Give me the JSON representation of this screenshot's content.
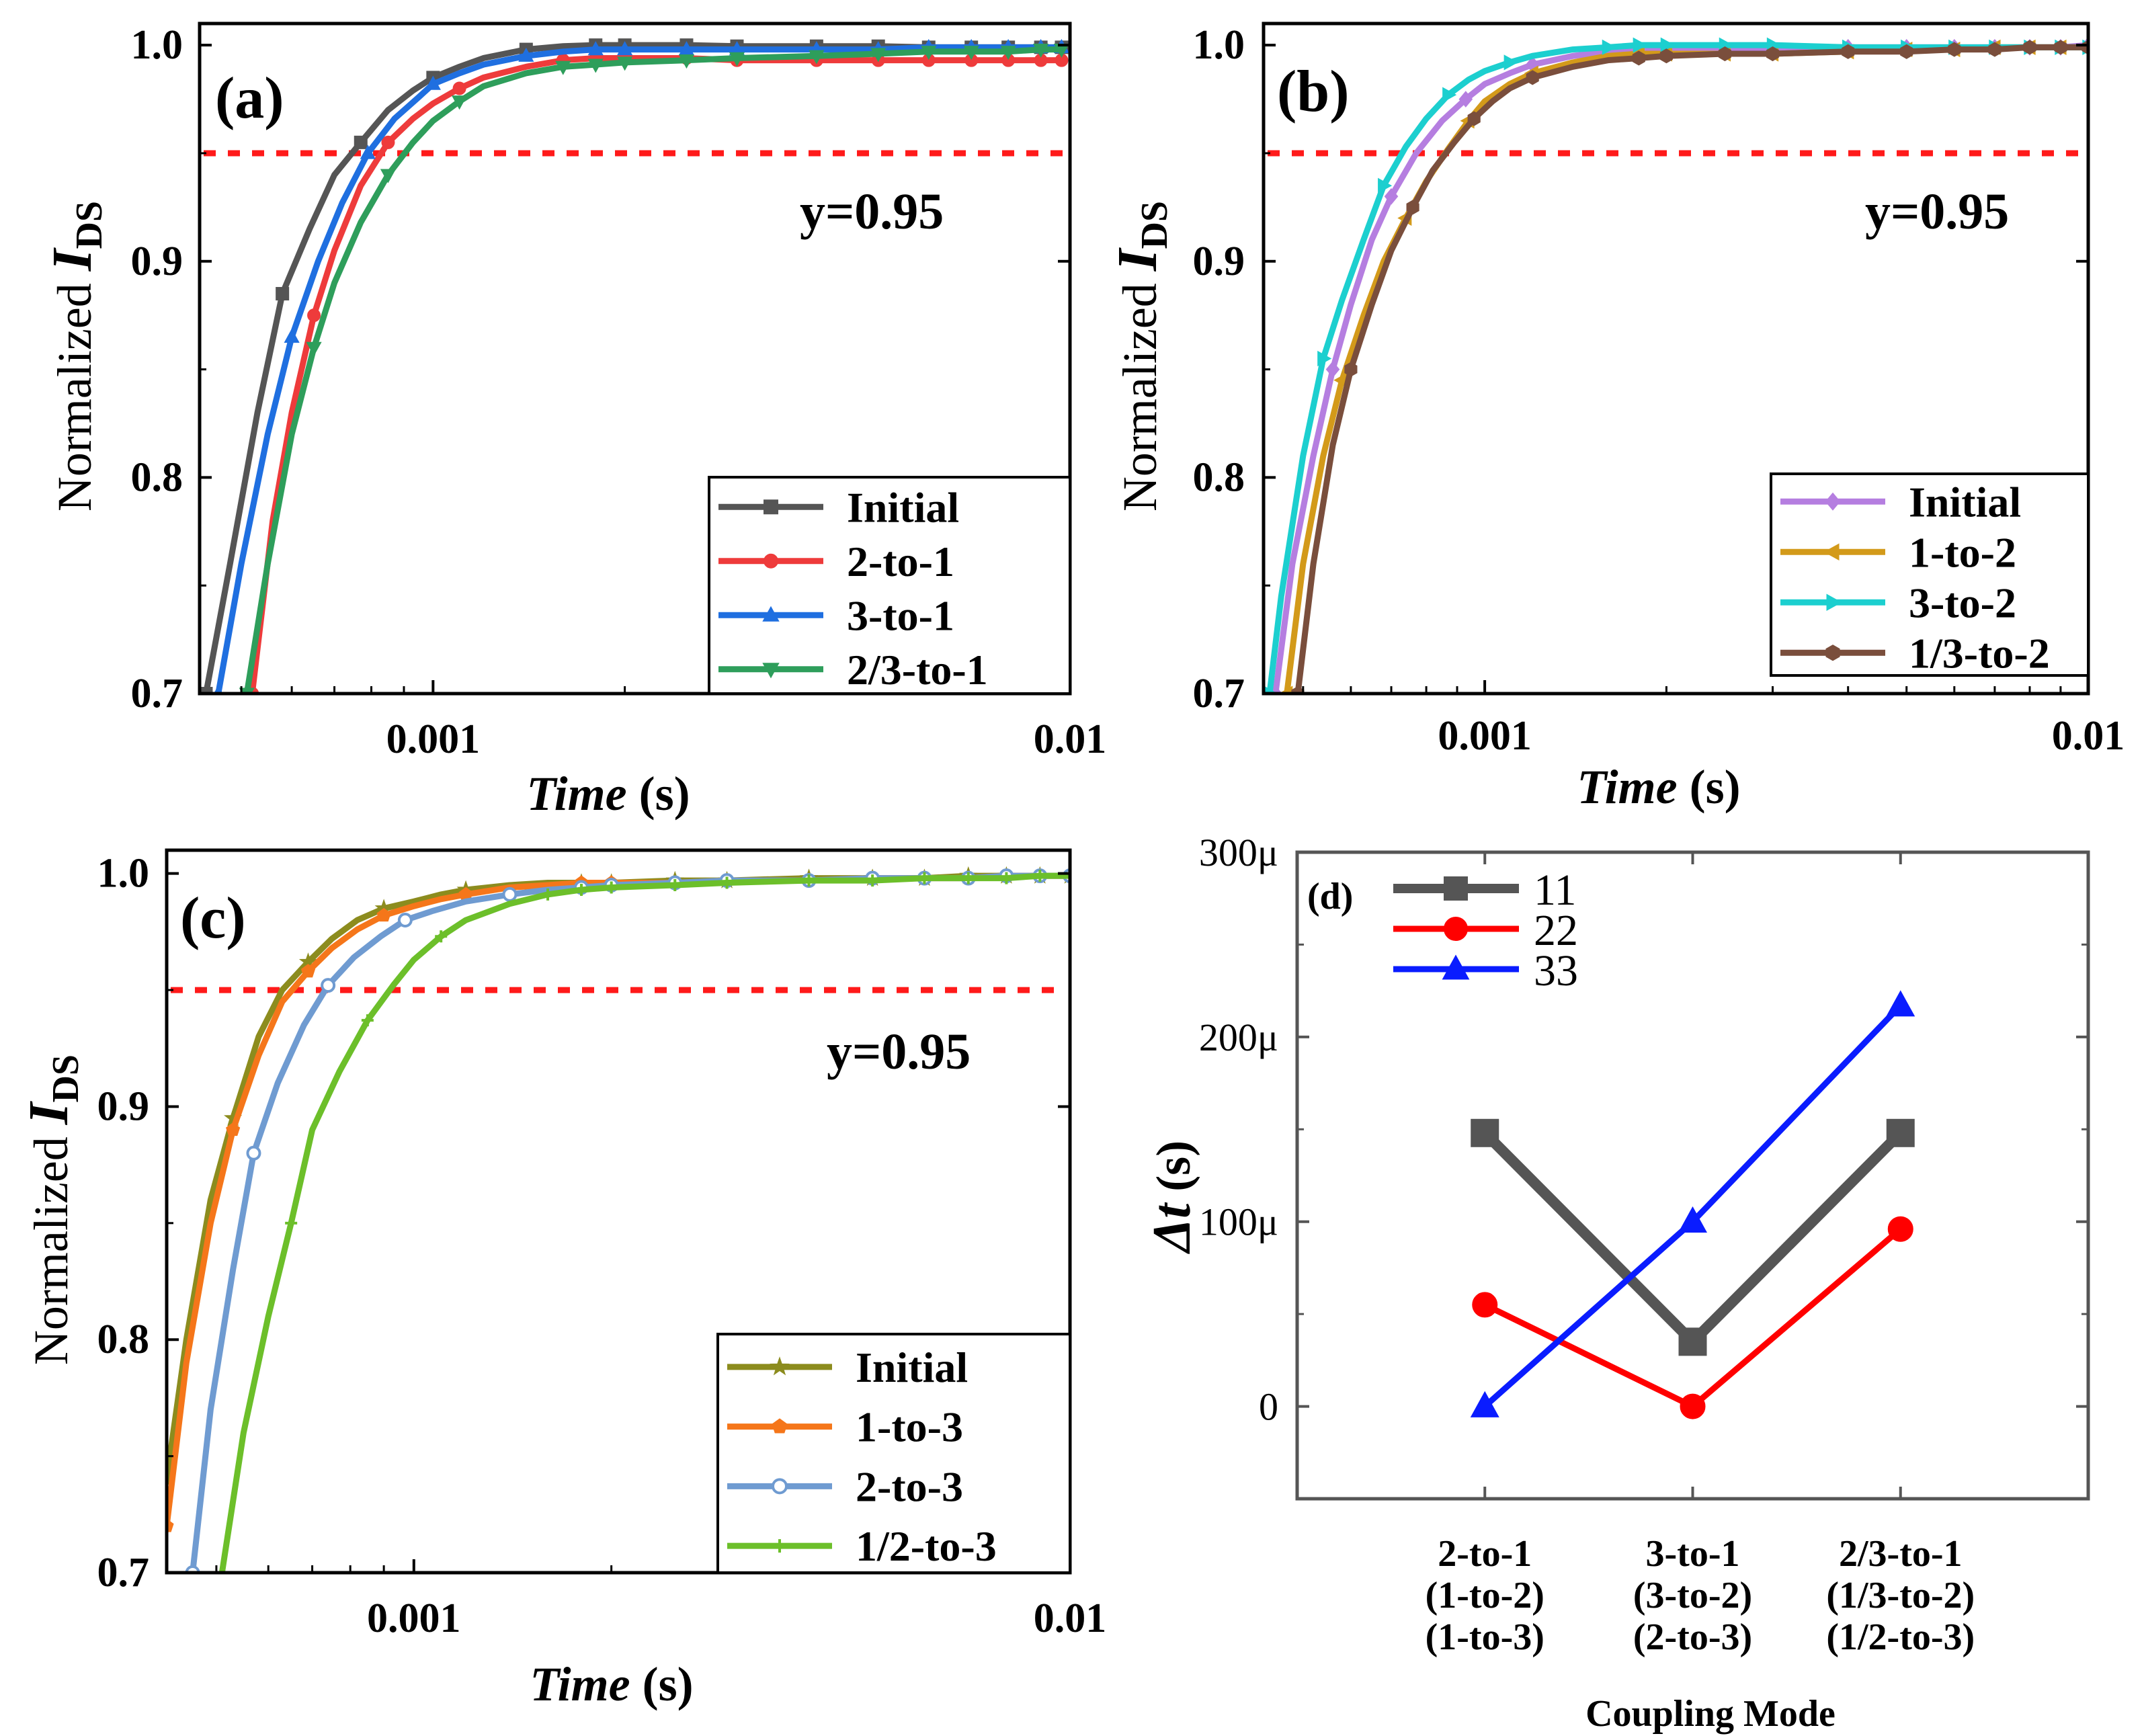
{
  "chart_data": [
    {
      "id": "a",
      "type": "line",
      "panel_label": "(a)",
      "xlabel_italic": "Time",
      "xlabel_unit": " (s)",
      "ylabel_prefix": "Normalized ",
      "ylabel_var": "I",
      "ylabel_sub": "DS",
      "xscale": "log",
      "xlim": [
        0.00043,
        0.01
      ],
      "ylim": [
        0.7,
        1.01
      ],
      "xticks": [
        0.001,
        0.01
      ],
      "xtick_labels": [
        "0.001",
        "0.01"
      ],
      "yticks": [
        0.7,
        0.8,
        0.9,
        1.0
      ],
      "ytick_labels": [
        "0.7",
        "0.8",
        "0.9",
        "1.0"
      ],
      "reference_line": {
        "y": 0.95,
        "label": "y=0.95",
        "color": "#ff1a1a"
      },
      "legend_position": "bottom-right",
      "series": [
        {
          "name": "Initial",
          "color": "#555555",
          "marker": "square",
          "x": [
            0.00044,
            0.00048,
            0.00053,
            0.00058,
            0.00064,
            0.0007,
            0.00077,
            0.00085,
            0.00093,
            0.001,
            0.0011,
            0.0012,
            0.0014,
            0.0016,
            0.0018,
            0.002,
            0.0025,
            0.003,
            0.004,
            0.005,
            0.006,
            0.007,
            0.008,
            0.009,
            0.0097
          ],
          "y": [
            0.7,
            0.76,
            0.83,
            0.885,
            0.915,
            0.94,
            0.955,
            0.97,
            0.979,
            0.985,
            0.99,
            0.994,
            0.998,
            0.9995,
            1.0,
            1.0,
            1.0,
            0.9995,
            0.9995,
            0.9995,
            0.999,
            0.999,
            0.999,
            0.999,
            0.999
          ]
        },
        {
          "name": "2-to-1",
          "color": "#ee3b3b",
          "marker": "circle",
          "x": [
            0.00052,
            0.00056,
            0.0006,
            0.00065,
            0.0007,
            0.00077,
            0.00085,
            0.00093,
            0.001,
            0.0011,
            0.0012,
            0.0014,
            0.0016,
            0.0018,
            0.002,
            0.0025,
            0.003,
            0.004,
            0.005,
            0.006,
            0.007,
            0.008,
            0.009,
            0.0097
          ],
          "y": [
            0.7,
            0.78,
            0.83,
            0.875,
            0.905,
            0.935,
            0.955,
            0.966,
            0.973,
            0.98,
            0.985,
            0.99,
            0.993,
            0.994,
            0.994,
            0.994,
            0.993,
            0.993,
            0.993,
            0.993,
            0.993,
            0.993,
            0.993,
            0.993
          ]
        },
        {
          "name": "3-to-1",
          "color": "#1f6fe0",
          "marker": "triangle-up",
          "x": [
            0.00046,
            0.0005,
            0.00055,
            0.0006,
            0.00066,
            0.00072,
            0.00079,
            0.00087,
            0.00095,
            0.001,
            0.0011,
            0.0012,
            0.0014,
            0.0016,
            0.0018,
            0.002,
            0.0025,
            0.003,
            0.004,
            0.005,
            0.006,
            0.007,
            0.008,
            0.009,
            0.0097
          ],
          "y": [
            0.7,
            0.76,
            0.82,
            0.865,
            0.9,
            0.927,
            0.95,
            0.966,
            0.976,
            0.982,
            0.987,
            0.991,
            0.995,
            0.997,
            0.998,
            0.998,
            0.998,
            0.998,
            0.998,
            0.998,
            0.999,
            0.999,
            0.999,
            0.999,
            0.999
          ]
        },
        {
          "name": "2/3-to-1",
          "color": "#2e9e5b",
          "marker": "triangle-down",
          "x": [
            0.00051,
            0.00055,
            0.0006,
            0.00065,
            0.0007,
            0.00077,
            0.00085,
            0.00093,
            0.001,
            0.0011,
            0.0012,
            0.0014,
            0.0016,
            0.0018,
            0.002,
            0.0025,
            0.003,
            0.004,
            0.005,
            0.006,
            0.007,
            0.008,
            0.009,
            0.0097
          ],
          "y": [
            0.7,
            0.76,
            0.82,
            0.86,
            0.89,
            0.918,
            0.94,
            0.955,
            0.965,
            0.974,
            0.981,
            0.987,
            0.99,
            0.991,
            0.992,
            0.993,
            0.994,
            0.995,
            0.996,
            0.997,
            0.997,
            0.997,
            0.998,
            0.998
          ]
        }
      ]
    },
    {
      "id": "b",
      "type": "line",
      "panel_label": "(b)",
      "xlabel_italic": "Time",
      "xlabel_unit": " (s)",
      "ylabel_prefix": "Normalized ",
      "ylabel_var": "I",
      "ylabel_sub": "DS",
      "xscale": "log",
      "xlim": [
        0.00043,
        0.01
      ],
      "ylim": [
        0.7,
        1.01
      ],
      "xticks": [
        0.001,
        0.01
      ],
      "xtick_labels": [
        "0.001",
        "0.01"
      ],
      "yticks": [
        0.7,
        0.8,
        0.9,
        1.0
      ],
      "ytick_labels": [
        "0.7",
        "0.8",
        "0.9",
        "1.0"
      ],
      "reference_line": {
        "y": 0.95,
        "label": "y=0.95",
        "color": "#ff1a1a"
      },
      "legend_position": "bottom-right",
      "series": [
        {
          "name": "Initial",
          "color": "#b57ee0",
          "marker": "diamond",
          "x": [
            0.00045,
            0.00048,
            0.00052,
            0.00056,
            0.0006,
            0.00065,
            0.0007,
            0.00077,
            0.00085,
            0.00093,
            0.001,
            0.0011,
            0.0012,
            0.0014,
            0.0016,
            0.0018,
            0.002,
            0.0025,
            0.003,
            0.004,
            0.005,
            0.006,
            0.007,
            0.008,
            0.009,
            0.01
          ],
          "y": [
            0.7,
            0.76,
            0.81,
            0.85,
            0.88,
            0.91,
            0.93,
            0.95,
            0.965,
            0.975,
            0.982,
            0.987,
            0.991,
            0.995,
            0.997,
            0.998,
            0.998,
            0.998,
            0.998,
            0.999,
            0.999,
            0.999,
            0.999,
            0.999,
            0.999,
            1.0
          ]
        },
        {
          "name": "1-to-2",
          "color": "#d39a1a",
          "marker": "triangle-left",
          "x": [
            0.00047,
            0.0005,
            0.00054,
            0.00058,
            0.00063,
            0.00068,
            0.00074,
            0.0008,
            0.00087,
            0.00094,
            0.001,
            0.0011,
            0.0012,
            0.0014,
            0.0016,
            0.0018,
            0.002,
            0.0025,
            0.003,
            0.004,
            0.005,
            0.006,
            0.007,
            0.008,
            0.009,
            0.01
          ],
          "y": [
            0.7,
            0.76,
            0.81,
            0.845,
            0.875,
            0.9,
            0.92,
            0.937,
            0.952,
            0.965,
            0.974,
            0.982,
            0.987,
            0.992,
            0.995,
            0.996,
            0.996,
            0.996,
            0.996,
            0.997,
            0.998,
            0.998,
            0.999,
            0.999,
            0.999,
            0.999
          ]
        },
        {
          "name": "3-to-2",
          "color": "#1ccfcf",
          "marker": "triangle-right",
          "x": [
            0.00044,
            0.00046,
            0.0005,
            0.00054,
            0.00058,
            0.00063,
            0.00068,
            0.00074,
            0.0008,
            0.00087,
            0.00094,
            0.001,
            0.0011,
            0.0012,
            0.0014,
            0.0016,
            0.0018,
            0.002,
            0.0025,
            0.003,
            0.004,
            0.005,
            0.006,
            0.007,
            0.008,
            0.009,
            0.01
          ],
          "y": [
            0.7,
            0.745,
            0.81,
            0.855,
            0.882,
            0.91,
            0.935,
            0.953,
            0.966,
            0.977,
            0.984,
            0.988,
            0.992,
            0.995,
            0.998,
            0.999,
            1.0,
            1.0,
            1.0,
            1.0,
            0.999,
            0.999,
            0.999,
            0.999,
            0.999,
            0.999,
            0.999
          ]
        },
        {
          "name": "1/3-to-2",
          "color": "#7a4e3c",
          "marker": "hexagon",
          "x": [
            0.00049,
            0.00052,
            0.00056,
            0.0006,
            0.00065,
            0.0007,
            0.00076,
            0.00082,
            0.00089,
            0.00096,
            0.00103,
            0.0011,
            0.0012,
            0.0014,
            0.0016,
            0.0018,
            0.002,
            0.0025,
            0.003,
            0.004,
            0.005,
            0.006,
            0.007,
            0.008,
            0.009,
            0.01
          ],
          "y": [
            0.7,
            0.76,
            0.815,
            0.85,
            0.88,
            0.905,
            0.925,
            0.942,
            0.955,
            0.966,
            0.974,
            0.98,
            0.985,
            0.99,
            0.993,
            0.994,
            0.995,
            0.996,
            0.996,
            0.997,
            0.997,
            0.998,
            0.998,
            0.999,
            0.999,
            0.999
          ]
        }
      ]
    },
    {
      "id": "c",
      "type": "line",
      "panel_label": "(c)",
      "xlabel_italic": "Time",
      "xlabel_unit": " (s)",
      "ylabel_prefix": "Normalized ",
      "ylabel_var": "I",
      "ylabel_sub": "DS",
      "xscale": "log",
      "xlim": [
        0.00042,
        0.01
      ],
      "ylim": [
        0.7,
        1.01
      ],
      "xticks": [
        0.001,
        0.01
      ],
      "xtick_labels": [
        "0.001",
        "0.01"
      ],
      "yticks": [
        0.7,
        0.8,
        0.9,
        1.0
      ],
      "ytick_labels": [
        "0.7",
        "0.8",
        "0.9",
        "1.0"
      ],
      "reference_line": {
        "y": 0.95,
        "label": "y=0.95",
        "color": "#ff1a1a"
      },
      "legend_position": "bottom-right",
      "series": [
        {
          "name": "Initial",
          "color": "#8c8c1e",
          "marker": "star",
          "x": [
            0.00042,
            0.00045,
            0.00049,
            0.00053,
            0.00058,
            0.00063,
            0.00069,
            0.00075,
            0.00082,
            0.0009,
            0.001,
            0.0011,
            0.0012,
            0.0014,
            0.0016,
            0.0018,
            0.002,
            0.0025,
            0.003,
            0.004,
            0.005,
            0.006,
            0.007,
            0.008,
            0.009,
            0.01
          ],
          "y": [
            0.74,
            0.8,
            0.86,
            0.895,
            0.93,
            0.95,
            0.962,
            0.972,
            0.98,
            0.985,
            0.988,
            0.991,
            0.993,
            0.995,
            0.996,
            0.996,
            0.996,
            0.997,
            0.997,
            0.998,
            0.998,
            0.998,
            0.999,
            0.999,
            0.999,
            0.999
          ]
        },
        {
          "name": "1-to-3",
          "color": "#f5761a",
          "marker": "pentagon",
          "x": [
            0.00042,
            0.00045,
            0.00049,
            0.00053,
            0.00058,
            0.00063,
            0.00069,
            0.00075,
            0.00082,
            0.0009,
            0.001,
            0.0011,
            0.0012,
            0.0014,
            0.0016,
            0.0018,
            0.002,
            0.0025,
            0.003,
            0.004,
            0.005,
            0.006,
            0.007,
            0.008,
            0.009,
            0.01
          ],
          "y": [
            0.72,
            0.79,
            0.85,
            0.89,
            0.922,
            0.945,
            0.958,
            0.968,
            0.976,
            0.982,
            0.986,
            0.989,
            0.991,
            0.994,
            0.995,
            0.996,
            0.996,
            0.996,
            0.997,
            0.997,
            0.998,
            0.998,
            0.998,
            0.999,
            0.999,
            0.999
          ]
        },
        {
          "name": "2-to-3",
          "color": "#6f9bd1",
          "marker": "circle-open",
          "x": [
            0.00046,
            0.00049,
            0.00053,
            0.00057,
            0.00062,
            0.00068,
            0.00074,
            0.00081,
            0.00089,
            0.00097,
            0.00107,
            0.0012,
            0.0014,
            0.0016,
            0.0018,
            0.002,
            0.0025,
            0.003,
            0.004,
            0.005,
            0.006,
            0.007,
            0.008,
            0.009,
            0.01
          ],
          "y": [
            0.7,
            0.77,
            0.83,
            0.88,
            0.91,
            0.935,
            0.952,
            0.964,
            0.973,
            0.98,
            0.984,
            0.988,
            0.991,
            0.993,
            0.994,
            0.995,
            0.996,
            0.997,
            0.997,
            0.998,
            0.998,
            0.998,
            0.999,
            0.999,
            0.999
          ]
        },
        {
          "name": "1/2-to-3",
          "color": "#6cbf2a",
          "marker": "plus",
          "x": [
            0.00051,
            0.00055,
            0.0006,
            0.00065,
            0.0007,
            0.00077,
            0.00085,
            0.00093,
            0.001,
            0.0011,
            0.0012,
            0.0014,
            0.0016,
            0.0018,
            0.002,
            0.0025,
            0.003,
            0.004,
            0.005,
            0.006,
            0.007,
            0.008,
            0.009,
            0.01
          ],
          "y": [
            0.7,
            0.76,
            0.81,
            0.85,
            0.89,
            0.915,
            0.937,
            0.952,
            0.963,
            0.973,
            0.98,
            0.987,
            0.991,
            0.993,
            0.994,
            0.995,
            0.996,
            0.997,
            0.997,
            0.998,
            0.998,
            0.998,
            0.999,
            0.999
          ]
        }
      ]
    },
    {
      "id": "d",
      "type": "line",
      "panel_label": "(d)",
      "xlabel": "Coupling Mode",
      "ylabel_var": "Δt",
      "ylabel_unit": " (s)",
      "ylim": [
        -5e-05,
        0.0003
      ],
      "yticks": [
        0,
        0.0001,
        0.0002,
        0.0003
      ],
      "ytick_labels": [
        "0",
        "100μ",
        "200μ",
        "300μ"
      ],
      "categories": [
        [
          "2-to-1",
          "(1-to-2)",
          "(1-to-3)"
        ],
        [
          "3-to-1",
          "(3-to-2)",
          "(2-to-3)"
        ],
        [
          "2/3-to-1",
          "(1/3-to-2)",
          "(1/2-to-3)"
        ]
      ],
      "legend_position": "top-left",
      "series": [
        {
          "name": "11",
          "color": "#555555",
          "marker": "square",
          "values": [
            0.000148,
            3.5e-05,
            0.000148
          ]
        },
        {
          "name": "22",
          "color": "#ff0000",
          "marker": "circle",
          "values": [
            5.5e-05,
            0.0,
            9.6e-05
          ]
        },
        {
          "name": "33",
          "color": "#0a1cff",
          "marker": "triangle-up",
          "values": [
            0.0,
            0.0001,
            0.000217
          ]
        }
      ]
    }
  ]
}
